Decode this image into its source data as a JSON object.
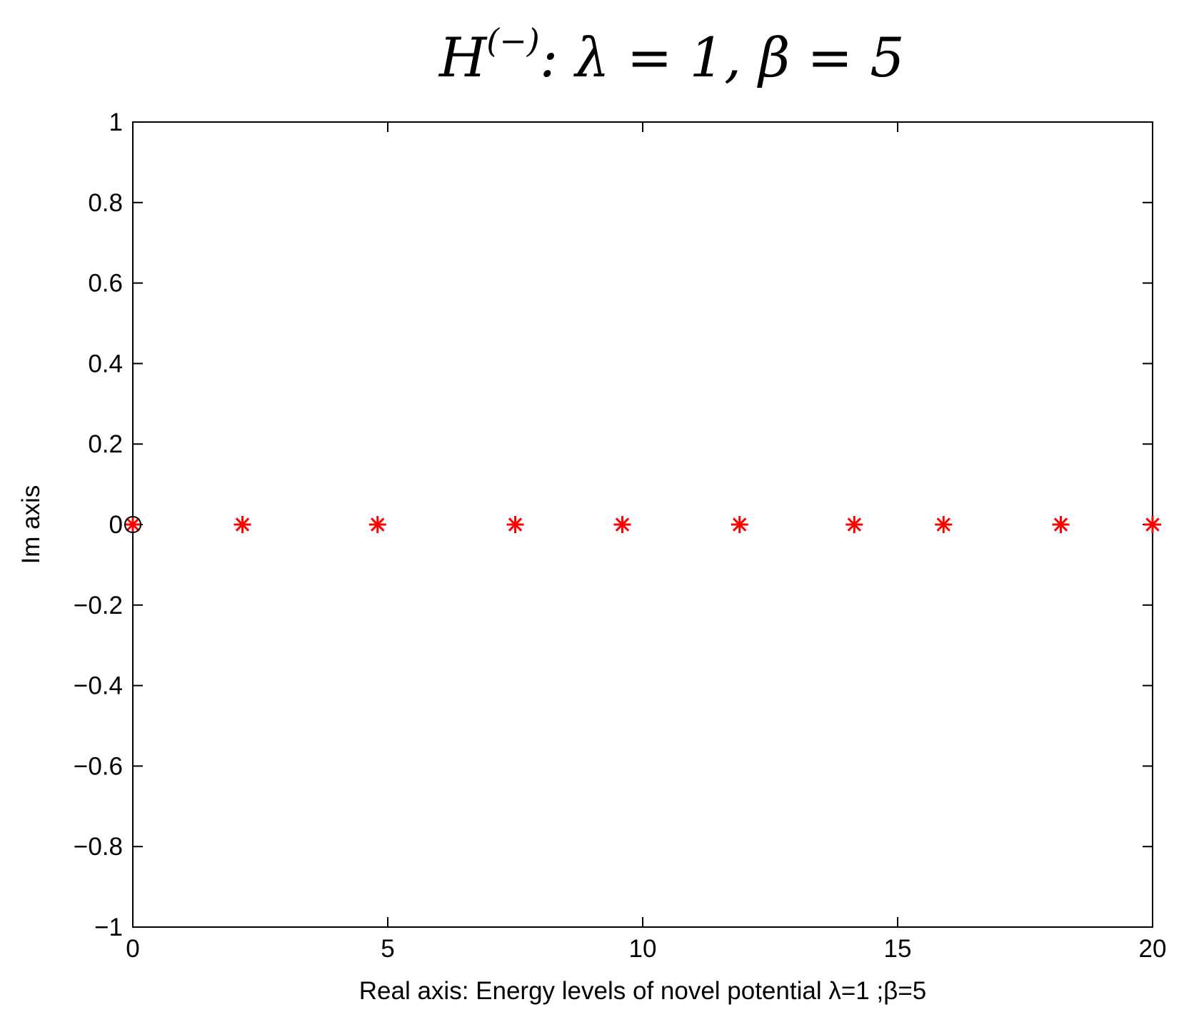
{
  "chart_data": {
    "type": "scatter",
    "title": {
      "base": "H",
      "superscript": "(−)",
      "rest": ": λ = 1, β = 5"
    },
    "xlabel": "Real axis: Energy levels of novel potential λ=1 ;β=5",
    "ylabel": "Im axis",
    "xlim": [
      0,
      20
    ],
    "ylim": [
      -1,
      1
    ],
    "x_ticks": [
      0,
      5,
      10,
      15,
      20
    ],
    "x_tick_labels": [
      "0",
      "5",
      "10",
      "15",
      "20"
    ],
    "y_ticks": [
      1,
      0.8,
      0.6,
      0.4,
      0.2,
      0,
      -0.2,
      -0.4,
      -0.6,
      -0.8,
      -1
    ],
    "y_tick_labels": [
      "1",
      "0.8",
      "0.6",
      "0.4",
      "0.2",
      "0",
      "−0.2",
      "−0.4",
      "−0.6",
      "−0.8",
      "−1"
    ],
    "grid": false,
    "series": [
      {
        "marker": "asterisk",
        "color": "#ff0000",
        "points": [
          {
            "x": 0,
            "y": 0
          },
          {
            "x": 2.15,
            "y": 0
          },
          {
            "x": 4.8,
            "y": 0
          },
          {
            "x": 7.5,
            "y": 0
          },
          {
            "x": 9.6,
            "y": 0
          },
          {
            "x": 11.9,
            "y": 0
          },
          {
            "x": 14.15,
            "y": 0
          },
          {
            "x": 15.9,
            "y": 0
          },
          {
            "x": 18.2,
            "y": 0
          },
          {
            "x": 20,
            "y": 0
          }
        ]
      },
      {
        "marker": "circle",
        "color": "#000000",
        "points": [
          {
            "x": 0,
            "y": 0
          }
        ]
      }
    ]
  }
}
